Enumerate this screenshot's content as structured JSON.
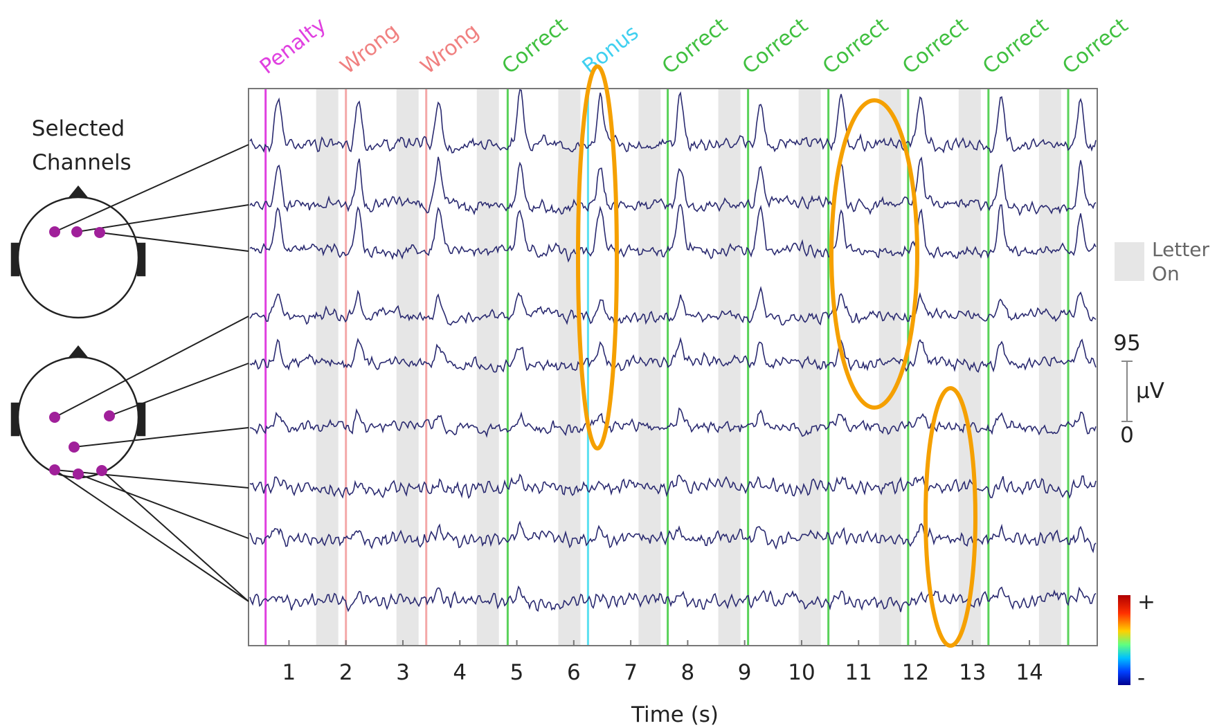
{
  "chart_data": {
    "type": "eeg",
    "channel_label": [
      "Selected",
      "Channels"
    ],
    "xlabel": "Time (s)",
    "xlim": [
      0.29,
      15.19
    ],
    "xticks": [
      1,
      2,
      3,
      4,
      5,
      6,
      7,
      8,
      9,
      10,
      11,
      12,
      13,
      14
    ],
    "events": [
      {
        "label": "Penalty",
        "time": 0.59,
        "color": "#e040e0",
        "text_color": "#e040e0"
      },
      {
        "label": "Wrong",
        "time": 2.0,
        "color": "#f4a8a8",
        "text_color": "#f08080"
      },
      {
        "label": "Wrong",
        "time": 3.41,
        "color": "#f4a8a8",
        "text_color": "#f08080"
      },
      {
        "label": "Correct",
        "time": 4.84,
        "color": "#5ad25a",
        "text_color": "#40c040"
      },
      {
        "label": "Bonus",
        "time": 6.25,
        "color": "#5ce0f0",
        "text_color": "#40d0f0"
      },
      {
        "label": "Correct",
        "time": 7.65,
        "color": "#5ad25a",
        "text_color": "#40c040"
      },
      {
        "label": "Correct",
        "time": 9.06,
        "color": "#5ad25a",
        "text_color": "#40c040"
      },
      {
        "label": "Correct",
        "time": 10.47,
        "color": "#5ad25a",
        "text_color": "#40c040"
      },
      {
        "label": "Correct",
        "time": 11.87,
        "color": "#5ad25a",
        "text_color": "#40c040"
      },
      {
        "label": "Correct",
        "time": 13.28,
        "color": "#5ad25a",
        "text_color": "#40c040"
      },
      {
        "label": "Correct",
        "time": 14.68,
        "color": "#5ad25a",
        "text_color": "#40c040"
      }
    ],
    "legend_label": [
      "Letter",
      "On"
    ],
    "scale_bar": {
      "max": "95",
      "unit": "µV",
      "min": "0"
    },
    "colorbar": {
      "plus": "+",
      "minus": "-"
    }
  }
}
